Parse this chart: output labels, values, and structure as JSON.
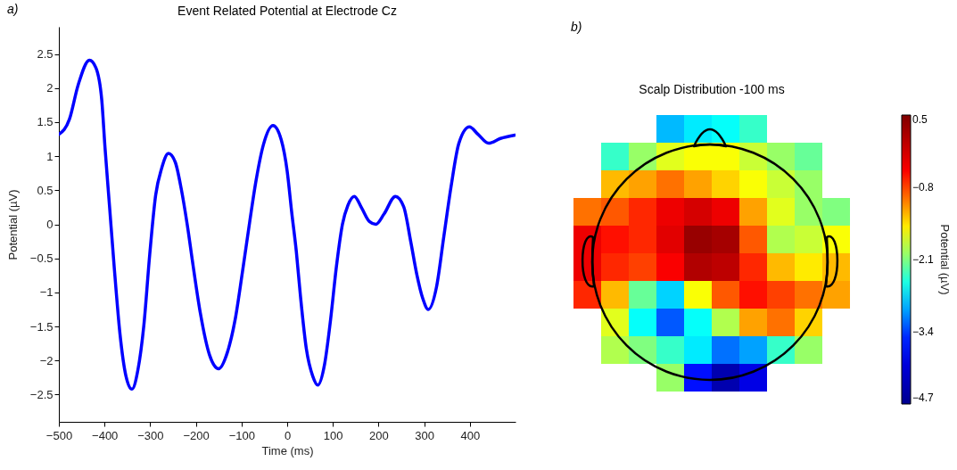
{
  "chart_data": [
    {
      "type": "line",
      "title": "Event Related Potential at Electrode Cz",
      "xlabel": "Time (ms)",
      "ylabel": "Potential (µV)",
      "series": [
        {
          "color": "#0000ff",
          "x": [
            -500,
            -477,
            -458,
            -433,
            -419,
            -406,
            -399,
            -389,
            -379,
            -366,
            -353,
            -340,
            -327,
            -314,
            -301,
            -288,
            -275,
            -260,
            -245,
            -232,
            -219,
            -206,
            -190,
            -170,
            -150,
            -131,
            -114,
            -98,
            -82,
            -69,
            -52,
            -31,
            -13,
            0,
            10,
            20,
            29,
            42,
            56,
            67,
            82,
            95,
            108,
            121,
            133,
            147,
            163,
            180,
            194,
            212,
            237,
            255,
            271,
            284,
            297,
            309,
            327,
            343,
            359,
            376,
            399,
            418,
            441,
            467,
            499
          ],
          "values": [
            1.32,
            1.54,
            2.04,
            2.41,
            2.3,
            1.82,
            1.13,
            0.26,
            -0.61,
            -1.62,
            -2.23,
            -2.42,
            -2.14,
            -1.49,
            -0.44,
            0.43,
            0.82,
            1.04,
            0.91,
            0.52,
            0.0,
            -0.61,
            -1.31,
            -1.92,
            -2.12,
            -1.88,
            -1.4,
            -0.7,
            0.04,
            0.61,
            1.17,
            1.45,
            1.24,
            0.78,
            0.17,
            -0.4,
            -1.05,
            -1.83,
            -2.23,
            -2.36,
            -2.05,
            -1.4,
            -0.61,
            0.0,
            0.28,
            0.41,
            0.24,
            0.04,
            0.0,
            0.15,
            0.41,
            0.26,
            -0.27,
            -0.74,
            -1.09,
            -1.25,
            -0.92,
            -0.18,
            0.56,
            1.19,
            1.43,
            1.32,
            1.19,
            1.26,
            1.31
          ]
        }
      ],
      "xlim": [
        -500,
        500
      ],
      "xticks": [
        -500,
        -400,
        -300,
        -200,
        -100,
        0,
        100,
        200,
        300,
        400
      ],
      "ylim": [
        -2.9,
        2.9
      ],
      "yticks": [
        -2.5,
        -2,
        -1.5,
        -1,
        -0.5,
        0,
        0.5,
        1,
        1.5,
        2,
        2.5
      ],
      "annotations": [
        "a)"
      ]
    },
    {
      "type": "heatmap",
      "title": "Scalp Distribution -100 ms",
      "clabel": "Potential (µV)",
      "clim": [
        -4.7,
        0.5
      ],
      "cticks": [
        -4.7,
        -3.4,
        -2.1,
        -0.8,
        0.5
      ],
      "categories": [
        null,
        null,
        null,
        null,
        null,
        null,
        null,
        null,
        null,
        null
      ],
      "y_categories": [
        null,
        null,
        null,
        null,
        null,
        null,
        null,
        null,
        null,
        null
      ],
      "cells": [
        [
          null,
          null,
          null,
          -2.9,
          -2.7,
          -2.6,
          -2.4,
          null,
          null,
          null
        ],
        [
          null,
          -2.4,
          -2.0,
          -1.7,
          -1.6,
          -1.6,
          -1.8,
          -2.0,
          -2.2,
          null
        ],
        [
          null,
          -1.3,
          -1.2,
          -1.0,
          -1.2,
          -1.4,
          -1.6,
          -1.8,
          -2.0,
          null
        ],
        [
          -1.0,
          -0.9,
          -0.7,
          -0.4,
          -0.2,
          -0.4,
          -1.2,
          -1.7,
          -2.0,
          -2.1
        ],
        [
          -0.4,
          -0.6,
          -0.7,
          -0.3,
          0.3,
          0.2,
          -0.9,
          -1.9,
          -1.8,
          -1.6
        ],
        [
          -0.4,
          -0.7,
          -0.8,
          -0.5,
          0.1,
          0.0,
          -0.7,
          -1.3,
          -1.5,
          -1.3
        ],
        [
          -0.7,
          -1.3,
          -2.2,
          -2.8,
          -1.6,
          -0.9,
          -0.6,
          -0.8,
          -1.0,
          -1.2
        ],
        [
          null,
          -1.7,
          -2.6,
          -3.3,
          -2.6,
          -1.9,
          -1.2,
          -1.0,
          -1.4,
          null
        ],
        [
          null,
          -1.9,
          -2.1,
          -2.4,
          -2.7,
          -3.2,
          -3.0,
          -2.4,
          -2.0,
          null
        ],
        [
          null,
          null,
          null,
          -2.0,
          -3.6,
          -4.4,
          -3.9,
          null,
          null,
          null
        ]
      ],
      "annotations": [
        "b)"
      ]
    }
  ]
}
